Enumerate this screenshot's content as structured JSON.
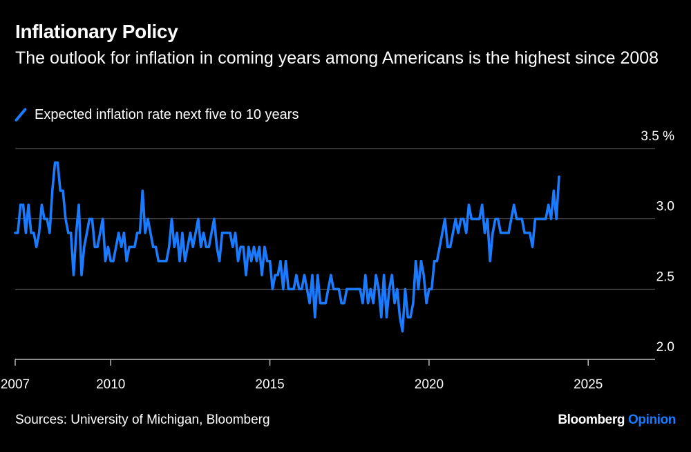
{
  "title": "Inflationary Policy",
  "subtitle": "The outlook for inflation in coming years among Americans is the highest since 2008",
  "legend": {
    "label": "Expected inflation rate next five to 10 years",
    "color": "#1a7bff"
  },
  "footer": {
    "source": "Sources: University of Michigan, Bloomberg",
    "brand": "Bloomberg",
    "brand_accent": "Opinion"
  },
  "colors": {
    "background": "#000000",
    "series": "#1a7bff",
    "grid": "#666666",
    "text": "#ffffff"
  },
  "chart_data": {
    "type": "line",
    "title": "Inflationary Policy",
    "xlabel": "",
    "ylabel": "%",
    "xlim": [
      2007,
      2027.1
    ],
    "ylim": [
      2.0,
      3.5
    ],
    "yticks": [
      2.0,
      2.5,
      3.0,
      3.5
    ],
    "ytick_labels": [
      "2.0",
      "2.5",
      "3.0",
      "3.5 %"
    ],
    "xticks": [
      2007,
      2010,
      2015,
      2020,
      2025
    ],
    "xtick_labels": [
      "2007",
      "2010",
      "2015",
      "2020",
      "2025"
    ],
    "grid": true,
    "series": [
      {
        "name": "Expected inflation rate next five to 10 years",
        "start": 2007.0,
        "step": 0.0833333,
        "values": [
          2.9,
          2.9,
          3.1,
          3.1,
          2.9,
          3.1,
          2.9,
          2.9,
          2.8,
          2.9,
          3.1,
          3.0,
          3.0,
          2.9,
          3.2,
          3.4,
          3.4,
          3.2,
          3.2,
          3.0,
          2.9,
          2.9,
          2.6,
          2.9,
          3.1,
          2.6,
          2.8,
          2.9,
          3.0,
          3.0,
          2.8,
          2.8,
          2.9,
          3.0,
          2.7,
          2.8,
          2.7,
          2.7,
          2.8,
          2.9,
          2.8,
          2.9,
          2.7,
          2.8,
          2.8,
          2.8,
          2.9,
          2.9,
          3.2,
          2.9,
          3.0,
          2.9,
          2.8,
          2.8,
          2.7,
          2.7,
          2.7,
          2.7,
          2.8,
          3.0,
          2.8,
          2.9,
          2.7,
          2.9,
          2.7,
          2.8,
          2.9,
          2.8,
          2.9,
          3.0,
          2.8,
          2.9,
          2.8,
          2.8,
          2.9,
          3.0,
          2.8,
          2.7,
          2.9,
          2.9,
          2.9,
          2.9,
          2.8,
          2.9,
          2.7,
          2.8,
          2.8,
          2.6,
          2.8,
          2.7,
          2.8,
          2.7,
          2.8,
          2.6,
          2.8,
          2.7,
          2.7,
          2.5,
          2.6,
          2.6,
          2.7,
          2.5,
          2.7,
          2.5,
          2.5,
          2.5,
          2.6,
          2.5,
          2.5,
          2.6,
          2.5,
          2.4,
          2.6,
          2.3,
          2.6,
          2.4,
          2.4,
          2.4,
          2.5,
          2.6,
          2.5,
          2.5,
          2.5,
          2.4,
          2.4,
          2.5,
          2.5,
          2.5,
          2.5,
          2.5,
          2.5,
          2.4,
          2.6,
          2.4,
          2.5,
          2.4,
          2.6,
          2.5,
          2.3,
          2.6,
          2.3,
          2.5,
          2.6,
          2.4,
          2.5,
          2.3,
          2.2,
          2.5,
          2.3,
          2.3,
          2.4,
          2.7,
          2.5,
          2.7,
          2.6,
          2.4,
          2.5,
          2.5,
          2.7,
          2.7,
          2.8,
          2.9,
          3.0,
          2.8,
          2.8,
          2.9,
          3.0,
          2.9,
          3.0,
          3.0,
          2.9,
          3.1,
          3.0,
          3.0,
          3.0,
          3.0,
          3.1,
          2.9,
          3.0,
          2.7,
          2.9,
          3.0,
          3.0,
          2.9,
          2.9,
          2.9,
          2.9,
          3.0,
          3.1,
          3.0,
          3.0,
          3.0,
          2.9,
          2.9,
          2.9,
          2.8,
          3.0,
          3.0,
          3.0,
          3.0,
          3.0,
          3.1,
          3.0,
          3.2,
          3.0,
          3.3
        ]
      }
    ]
  }
}
